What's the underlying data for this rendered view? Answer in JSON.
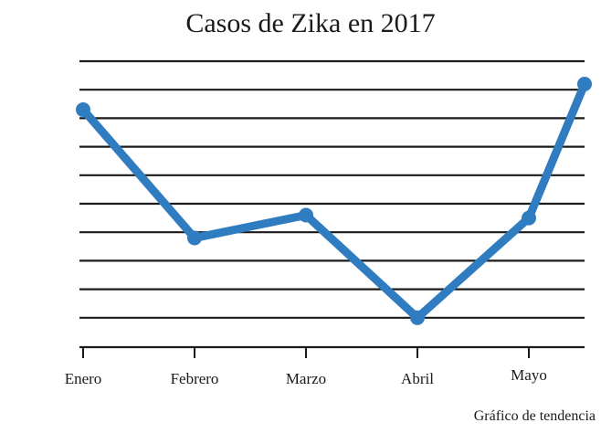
{
  "chart_data": {
    "type": "line",
    "title": "Casos de Zika en 2017",
    "caption": "Gráfico de tendencia",
    "categories": [
      "Enero",
      "Febrero",
      "Marzo",
      "Abril",
      "Mayo"
    ],
    "x": [
      0,
      1,
      2,
      3,
      4,
      4.5
    ],
    "series": [
      {
        "values": [
          7.3,
          2.8,
          3.6,
          0,
          3.5,
          8.2
        ]
      }
    ],
    "xlabel": "",
    "ylabel": "",
    "ylim": [
      -1,
      9
    ],
    "y_gridlines": [
      0,
      1,
      2,
      3,
      4,
      5,
      6,
      7,
      8,
      9
    ],
    "grid": "horizontal",
    "legend": "none",
    "colors": {
      "line": "#2f7dc0",
      "grid": "#1a1a1a"
    }
  }
}
